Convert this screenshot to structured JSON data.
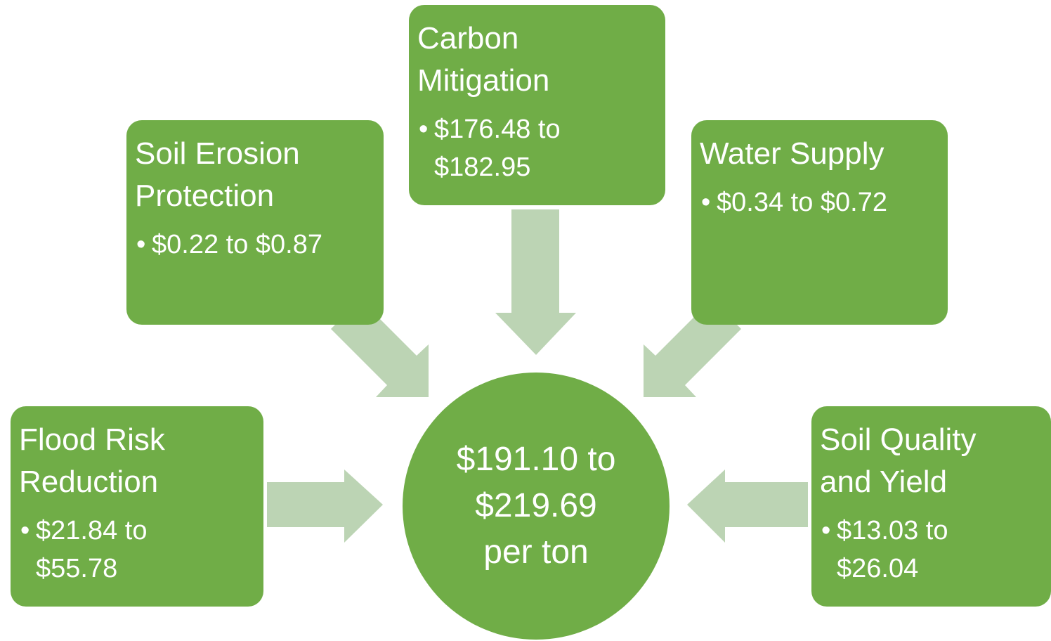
{
  "nodes": [
    {
      "title": [
        "Carbon",
        "Mitigation"
      ],
      "value": [
        "$176.48 to",
        "$182.95"
      ]
    },
    {
      "title": [
        "Soil Erosion",
        "Protection"
      ],
      "value": [
        "$0.22 to $0.87"
      ]
    },
    {
      "title": [
        "Water Supply"
      ],
      "value": [
        "$0.34 to $0.72"
      ]
    },
    {
      "title": [
        "Flood Risk",
        "Reduction"
      ],
      "value": [
        "$21.84 to",
        "$55.78"
      ]
    },
    {
      "title": [
        "Soil Quality",
        "and Yield"
      ],
      "value": [
        "$13.03 to",
        "$26.04"
      ]
    }
  ],
  "center": {
    "lines": [
      "$191.10 to",
      "$219.69",
      "per ton"
    ]
  }
}
